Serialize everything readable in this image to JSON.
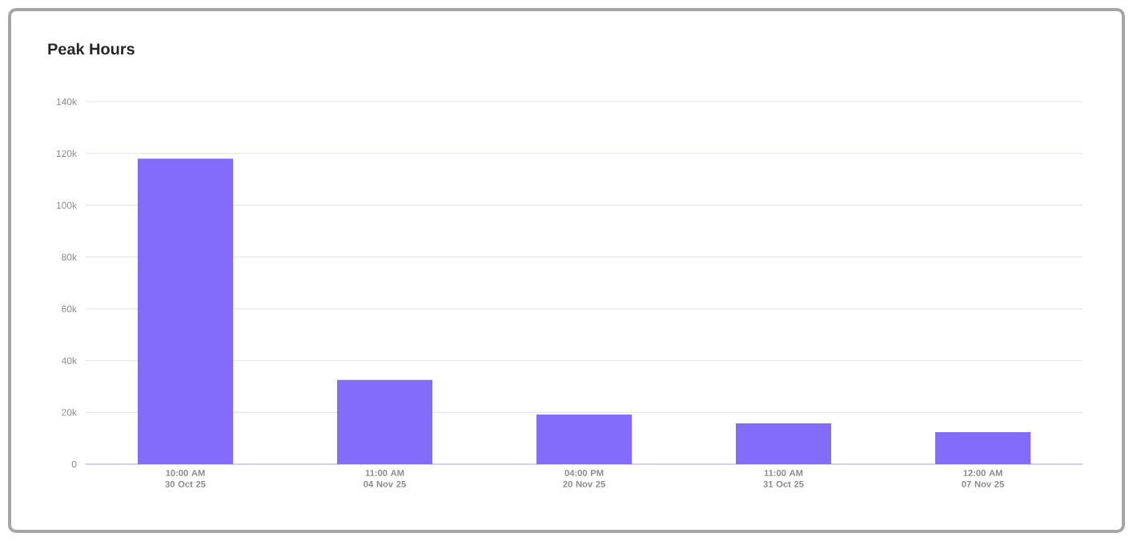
{
  "chart_data": {
    "type": "bar",
    "title": "Peak Hours",
    "categories": [
      "10:00 AM 30 Oct 25",
      "11:00 AM 04 Nov 25",
      "04:00 PM 20 Nov 25",
      "11:00 AM 31 Oct 25",
      "12:00 AM 07 Nov 25"
    ],
    "values": [
      118000,
      32500,
      19200,
      15800,
      12400
    ],
    "color": "#826cf9",
    "ylim": [
      0,
      140000
    ],
    "yticks": [
      {
        "value": 0,
        "label": "0"
      },
      {
        "value": 20000,
        "label": "20k"
      },
      {
        "value": 40000,
        "label": "40k"
      },
      {
        "value": 60000,
        "label": "60k"
      },
      {
        "value": 80000,
        "label": "80k"
      },
      {
        "value": 100000,
        "label": "100k"
      },
      {
        "value": 120000,
        "label": "120k"
      },
      {
        "value": 140000,
        "label": "140k"
      }
    ],
    "grid": "y"
  }
}
